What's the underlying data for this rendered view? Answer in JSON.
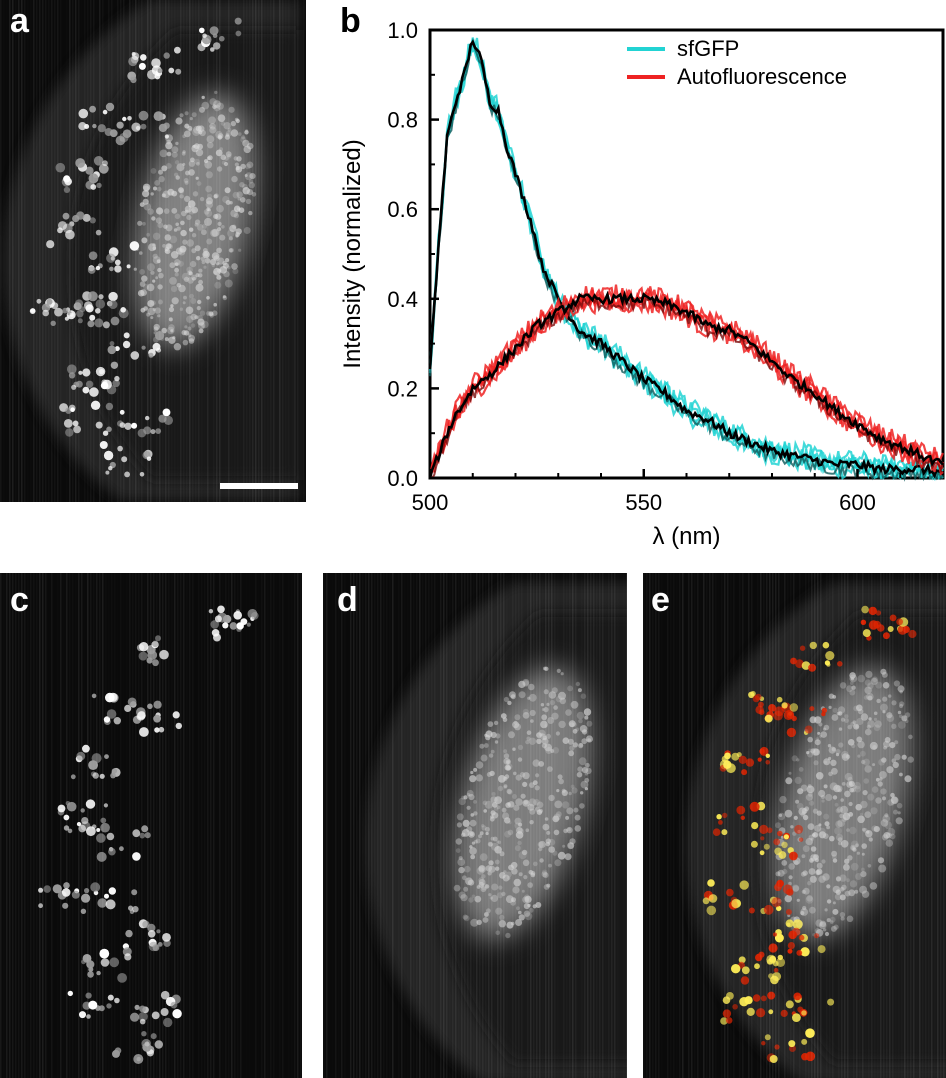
{
  "panels": {
    "a": {
      "label": "a"
    },
    "b": {
      "label": "b"
    },
    "c": {
      "label": "c"
    },
    "d": {
      "label": "d"
    },
    "e": {
      "label": "e"
    }
  },
  "colors": {
    "sfgfp": "#22d3d3",
    "autofluorescence": "#ee2222",
    "mean": "#000000",
    "hot_bright": "#ffee55",
    "hot_dim": "#dd2200"
  },
  "chart_data": {
    "type": "line",
    "xlabel": "λ (nm)",
    "ylabel": "Intensity (normalized)",
    "xlim": [
      500,
      620
    ],
    "ylim": [
      0,
      1
    ],
    "xticks": [
      500,
      550,
      600
    ],
    "yticks": [
      0.0,
      0.2,
      0.4,
      0.6,
      0.8,
      1.0
    ],
    "xtick_labels": [
      "500",
      "550",
      "600"
    ],
    "ytick_labels": [
      "0.0",
      "0.2",
      "0.4",
      "0.6",
      "0.8",
      "1.0"
    ],
    "legend": {
      "position": "top-right",
      "entries": [
        "sfGFP",
        "Autofluorescence"
      ]
    },
    "series": [
      {
        "name": "sfGFP",
        "color": "#22d3d3",
        "x": [
          500,
          502,
          504,
          506,
          508,
          510,
          512,
          514,
          516,
          518,
          520,
          522,
          524,
          526,
          528,
          530,
          535,
          540,
          545,
          550,
          555,
          560,
          565,
          570,
          575,
          580,
          585,
          590,
          595,
          600,
          605,
          610,
          615,
          620
        ],
        "y": [
          0.24,
          0.52,
          0.76,
          0.84,
          0.9,
          0.98,
          0.93,
          0.84,
          0.82,
          0.74,
          0.68,
          0.62,
          0.56,
          0.48,
          0.44,
          0.4,
          0.33,
          0.3,
          0.26,
          0.22,
          0.19,
          0.15,
          0.13,
          0.1,
          0.08,
          0.06,
          0.05,
          0.04,
          0.03,
          0.03,
          0.02,
          0.02,
          0.02,
          0.01
        ]
      },
      {
        "name": "Autofluorescence",
        "color": "#ee2222",
        "x": [
          500,
          502,
          504,
          506,
          508,
          510,
          515,
          520,
          525,
          530,
          535,
          540,
          545,
          550,
          555,
          560,
          565,
          570,
          575,
          580,
          585,
          590,
          595,
          600,
          605,
          610,
          615,
          620
        ],
        "y": [
          0.0,
          0.05,
          0.1,
          0.14,
          0.17,
          0.2,
          0.24,
          0.29,
          0.34,
          0.37,
          0.4,
          0.4,
          0.4,
          0.4,
          0.39,
          0.37,
          0.34,
          0.33,
          0.3,
          0.26,
          0.22,
          0.19,
          0.15,
          0.12,
          0.09,
          0.07,
          0.05,
          0.03
        ]
      }
    ]
  }
}
